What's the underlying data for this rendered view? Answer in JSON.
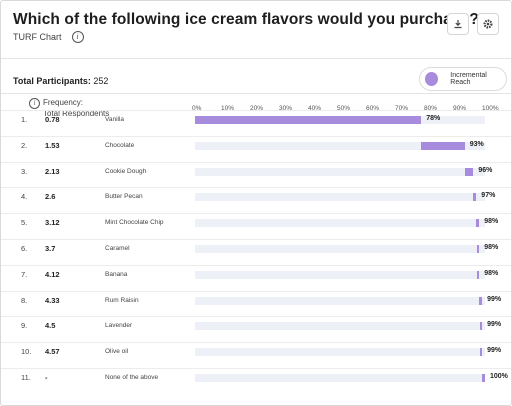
{
  "header": {
    "title": "Which of the following ice cream flavors would you purchase?",
    "subtitle": "TURF Chart",
    "info_glyph": "i",
    "download_icon": "download-icon",
    "settings_icon": "gear-icon"
  },
  "summary": {
    "participants_label": "Total Participants:",
    "participants_value": "252",
    "legend_label": "Incremental Reach",
    "legend_color": "#a78bdc"
  },
  "table": {
    "freq_header_line1": "Frequency:",
    "freq_header_line2": "Total Respondents"
  },
  "chart_data": {
    "type": "bar",
    "subtype": "stacked-turf",
    "xlim": [
      0,
      100
    ],
    "x_ticks": [
      "0%",
      "10%",
      "20%",
      "30%",
      "40%",
      "50%",
      "60%",
      "70%",
      "80%",
      "90%",
      "100%"
    ],
    "rows": [
      {
        "rank": "1.",
        "frequency": "0.78",
        "flavor": "Vanilla",
        "cumulative": 78,
        "label": "78%"
      },
      {
        "rank": "2.",
        "frequency": "1.53",
        "flavor": "Chocolate",
        "cumulative": 93,
        "label": "93%"
      },
      {
        "rank": "3.",
        "frequency": "2.13",
        "flavor": "Cookie Dough",
        "cumulative": 96,
        "label": "96%"
      },
      {
        "rank": "4.",
        "frequency": "2.6",
        "flavor": "Butter Pecan",
        "cumulative": 97,
        "label": "97%"
      },
      {
        "rank": "5.",
        "frequency": "3.12",
        "flavor": "Mint Chocolate Chip",
        "cumulative": 98,
        "label": "98%"
      },
      {
        "rank": "6.",
        "frequency": "3.7",
        "flavor": "Caramel",
        "cumulative": 98,
        "label": "98%"
      },
      {
        "rank": "7.",
        "frequency": "4.12",
        "flavor": "Banana",
        "cumulative": 98,
        "label": "98%"
      },
      {
        "rank": "8.",
        "frequency": "4.33",
        "flavor": "Rum Raisin",
        "cumulative": 99,
        "label": "99%"
      },
      {
        "rank": "9.",
        "frequency": "4.5",
        "flavor": "Lavender",
        "cumulative": 99,
        "label": "99%"
      },
      {
        "rank": "10.",
        "frequency": "4.57",
        "flavor": "Olive oil",
        "cumulative": 99,
        "label": "99%"
      },
      {
        "rank": "11.",
        "frequency": "-",
        "flavor": "None of the above",
        "cumulative": 100,
        "label": "100%"
      }
    ],
    "bar_color": "#a78bdc",
    "track_color": "#eef0f8"
  }
}
